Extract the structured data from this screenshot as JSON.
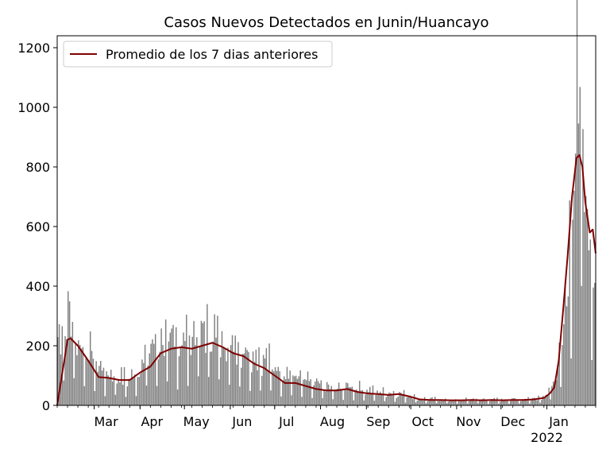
{
  "chart_data": {
    "type": "bar",
    "title": "Casos Nuevos Detectados en Junin/Huancayo",
    "xlabel": "",
    "ylabel": "",
    "ylim": [
      0,
      1240
    ],
    "yticks": [
      0,
      200,
      400,
      600,
      800,
      1000,
      1200
    ],
    "x_range": [
      "2021-02-04",
      "2022-02-03"
    ],
    "x_ticks": [
      {
        "date": "2021-03-01",
        "label": "Mar"
      },
      {
        "date": "2021-04-01",
        "label": "Apr"
      },
      {
        "date": "2021-05-01",
        "label": "May"
      },
      {
        "date": "2021-06-01",
        "label": "Jun"
      },
      {
        "date": "2021-07-01",
        "label": "Jul"
      },
      {
        "date": "2021-08-01",
        "label": "Aug"
      },
      {
        "date": "2021-09-01",
        "label": "Sep"
      },
      {
        "date": "2021-10-01",
        "label": "Oct"
      },
      {
        "date": "2021-11-01",
        "label": "Nov"
      },
      {
        "date": "2021-12-01",
        "label": "Dec"
      },
      {
        "date": "2022-01-01",
        "label": "Jan",
        "sublabel": "2022"
      }
    ],
    "grid": false,
    "legend": {
      "position": "top-left",
      "entries": [
        "Promedio de los 7 dias anteriores"
      ]
    },
    "series": [
      {
        "type": "bar",
        "color": "#808080",
        "daily_sample_dates": [
          "2021-02-04",
          "2021-02-11",
          "2021-02-18",
          "2021-02-25",
          "2021-03-04",
          "2021-03-11",
          "2021-03-18",
          "2021-03-25",
          "2021-04-01",
          "2021-04-08",
          "2021-04-15",
          "2021-04-22",
          "2021-04-29",
          "2021-05-06",
          "2021-05-13",
          "2021-05-20",
          "2021-05-27",
          "2021-06-03",
          "2021-06-10",
          "2021-06-17",
          "2021-06-24",
          "2021-07-01",
          "2021-07-08",
          "2021-07-15",
          "2021-07-22",
          "2021-07-29",
          "2021-08-05",
          "2021-08-12",
          "2021-08-19",
          "2021-08-26",
          "2021-09-02",
          "2021-09-09",
          "2021-09-16",
          "2021-09-23",
          "2021-09-30",
          "2021-10-07",
          "2021-10-14",
          "2021-10-21",
          "2021-10-28",
          "2021-11-04",
          "2021-11-11",
          "2021-11-18",
          "2021-11-25",
          "2021-12-02",
          "2021-12-09",
          "2021-12-16",
          "2021-12-23",
          "2021-12-30",
          "2022-01-06",
          "2022-01-10",
          "2022-01-14",
          "2022-01-18",
          "2022-01-21",
          "2022-01-24",
          "2022-01-27",
          "2022-01-30",
          "2022-02-03"
        ],
        "daily_sample_values": [
          200,
          280,
          190,
          170,
          120,
          95,
          85,
          80,
          120,
          180,
          200,
          190,
          205,
          215,
          230,
          225,
          200,
          190,
          175,
          160,
          140,
          120,
          100,
          90,
          75,
          65,
          55,
          50,
          60,
          55,
          45,
          40,
          38,
          35,
          30,
          20,
          18,
          18,
          15,
          15,
          18,
          18,
          16,
          18,
          18,
          20,
          22,
          30,
          70,
          150,
          350,
          650,
          900,
          1050,
          700,
          550,
          330
        ]
      },
      {
        "type": "line",
        "name": "Promedio de los 7 dias anteriores",
        "color": "#800000",
        "dates": [
          "2021-02-04",
          "2021-02-11",
          "2021-02-13",
          "2021-02-18",
          "2021-02-25",
          "2021-03-04",
          "2021-03-11",
          "2021-03-18",
          "2021-03-25",
          "2021-04-01",
          "2021-04-08",
          "2021-04-15",
          "2021-04-22",
          "2021-04-29",
          "2021-05-06",
          "2021-05-13",
          "2021-05-20",
          "2021-05-27",
          "2021-06-03",
          "2021-06-10",
          "2021-06-17",
          "2021-06-24",
          "2021-07-01",
          "2021-07-08",
          "2021-07-15",
          "2021-07-22",
          "2021-07-29",
          "2021-08-05",
          "2021-08-12",
          "2021-08-19",
          "2021-08-26",
          "2021-09-02",
          "2021-09-09",
          "2021-09-16",
          "2021-09-23",
          "2021-09-30",
          "2021-10-07",
          "2021-10-14",
          "2021-10-21",
          "2021-10-28",
          "2021-11-04",
          "2021-11-11",
          "2021-11-18",
          "2021-11-25",
          "2021-12-02",
          "2021-12-09",
          "2021-12-16",
          "2021-12-23",
          "2021-12-30",
          "2022-01-03",
          "2022-01-06",
          "2022-01-09",
          "2022-01-12",
          "2022-01-15",
          "2022-01-18",
          "2022-01-21",
          "2022-01-23",
          "2022-01-25",
          "2022-01-27",
          "2022-01-30",
          "2022-02-01",
          "2022-02-03"
        ],
        "values": [
          0,
          220,
          225,
          200,
          150,
          95,
          92,
          85,
          85,
          110,
          130,
          175,
          190,
          195,
          190,
          200,
          210,
          195,
          175,
          165,
          140,
          125,
          100,
          75,
          75,
          65,
          55,
          50,
          50,
          55,
          45,
          40,
          38,
          35,
          38,
          30,
          20,
          18,
          18,
          17,
          17,
          18,
          17,
          18,
          17,
          18,
          18,
          20,
          25,
          40,
          60,
          150,
          320,
          500,
          700,
          830,
          840,
          800,
          680,
          580,
          590,
          510
        ]
      }
    ]
  }
}
